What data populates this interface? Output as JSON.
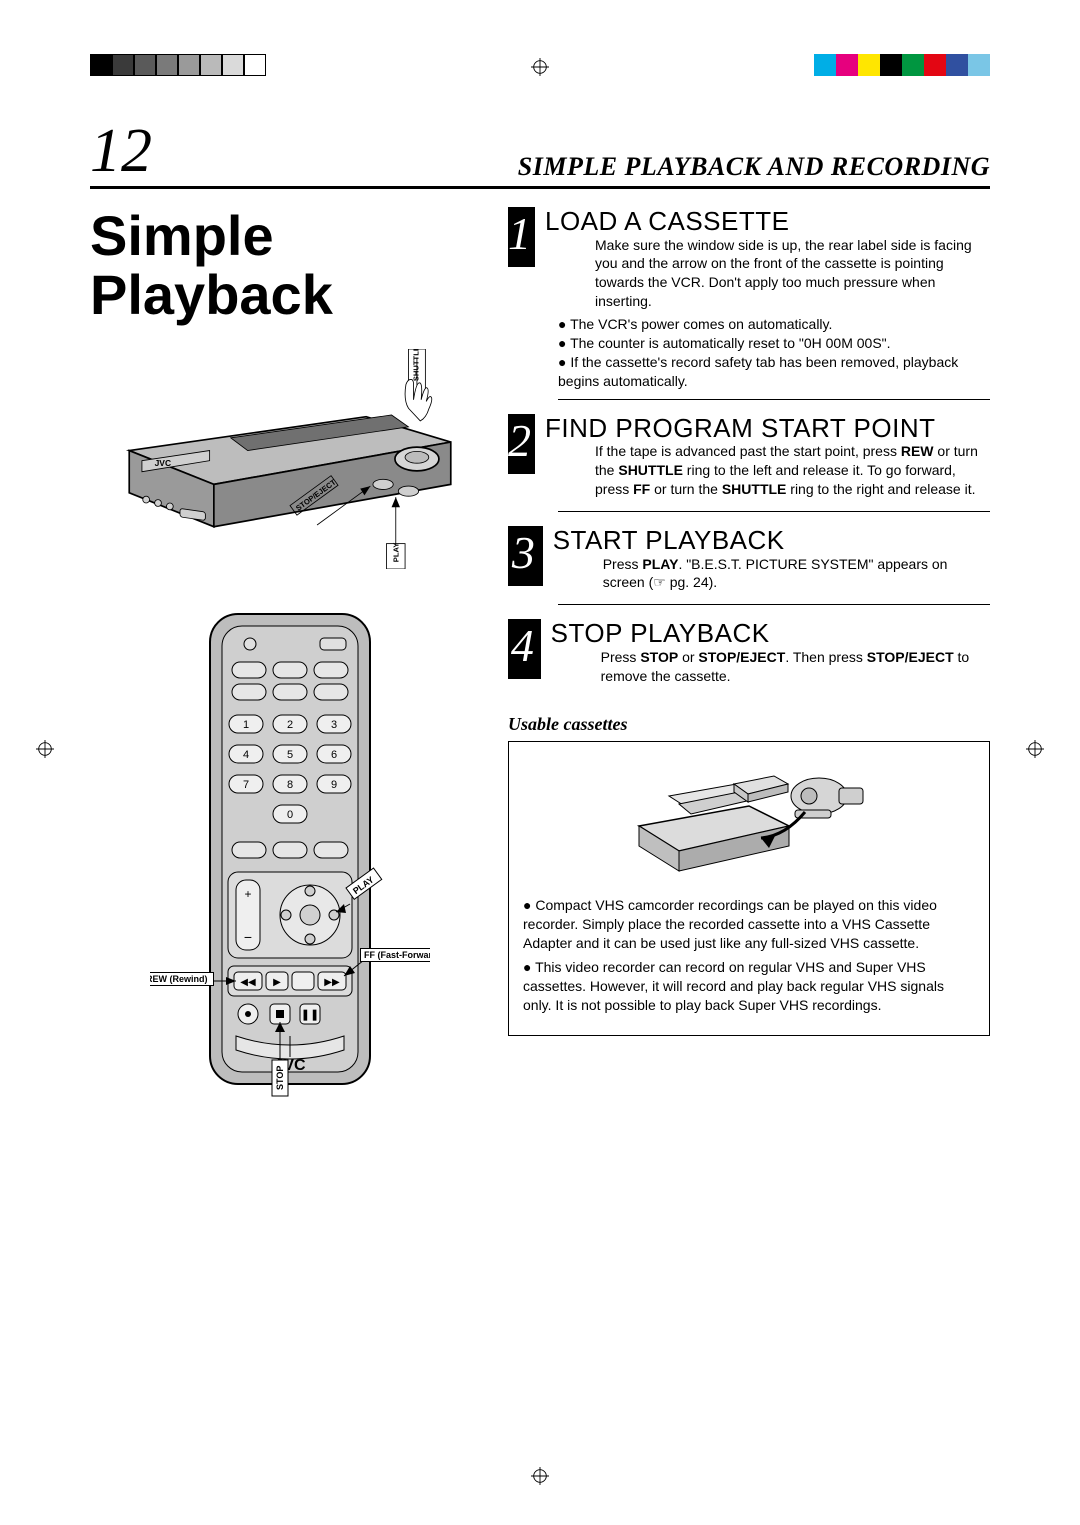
{
  "print_marks": {
    "left_swatches": [
      "#000000",
      "#3a3a3a",
      "#5a5a5a",
      "#7a7a7a",
      "#9a9a9a",
      "#bababa",
      "#dadada",
      "#ffffff"
    ],
    "right_swatches": [
      "#00aee6",
      "#e6007e",
      "#ffe600",
      "#000000",
      "#009640",
      "#e30613",
      "#3050a0",
      "#7ac6e6"
    ]
  },
  "page_number": "12",
  "header_title": "SIMPLE PLAYBACK AND RECORDING",
  "main_title_1": "Simple",
  "main_title_2": "Playback",
  "vcr_labels": {
    "shuttle": "SHUTTLE",
    "stop_eject": "STOP/EJECT",
    "play": "PLAY",
    "brand": "JVC"
  },
  "remote_labels": {
    "play": "PLAY",
    "rew": "REW (Rewind)",
    "ff": "FF (Fast-Forward)",
    "stop": "STOP",
    "brand": "JVC",
    "digits": [
      "1",
      "2",
      "3",
      "4",
      "5",
      "6",
      "7",
      "8",
      "9",
      "0"
    ]
  },
  "steps": [
    {
      "num": "1",
      "title": "LOAD A CASSETTE",
      "para": "Make sure the window side is up, the rear label side is facing you and the arrow on the front of the cassette is pointing towards the VCR. Don't apply too much pressure when inserting.",
      "bullets": [
        "The VCR's power comes on automatically.",
        "The counter is automatically reset to \"0H 00M 00S\".",
        "If the cassette's record safety tab has been removed, playback begins automatically."
      ]
    },
    {
      "num": "2",
      "title": "FIND PROGRAM START POINT",
      "para_html": "If the tape is advanced past the start point, press <b>REW</b> or turn the <b>SHUTTLE</b> ring to the left and release it. To go forward, press <b>FF</b> or turn the <b>SHUTTLE</b> ring to the right and release it."
    },
    {
      "num": "3",
      "title": "START PLAYBACK",
      "para_html": "Press <b>PLAY</b>. \"B.E.S.T. PICTURE SYSTEM\" appears on screen (☞ pg. 24)."
    },
    {
      "num": "4",
      "title": "STOP PLAYBACK",
      "para_html": "Press <b>STOP</b> or <b>STOP/EJECT</b>. Then press <b>STOP/EJECT</b> to remove the cassette."
    }
  ],
  "usable_head": "Usable cassettes",
  "usable_bullets": [
    "Compact VHS camcorder recordings can be played on this video recorder. Simply place the recorded cassette into a VHS Cassette Adapter and it can be used just like any full-sized VHS cassette.",
    "This video recorder can record on regular VHS and Super VHS cassettes. However, it will record and play back regular VHS signals only. It is not possible to play back Super VHS recordings."
  ]
}
